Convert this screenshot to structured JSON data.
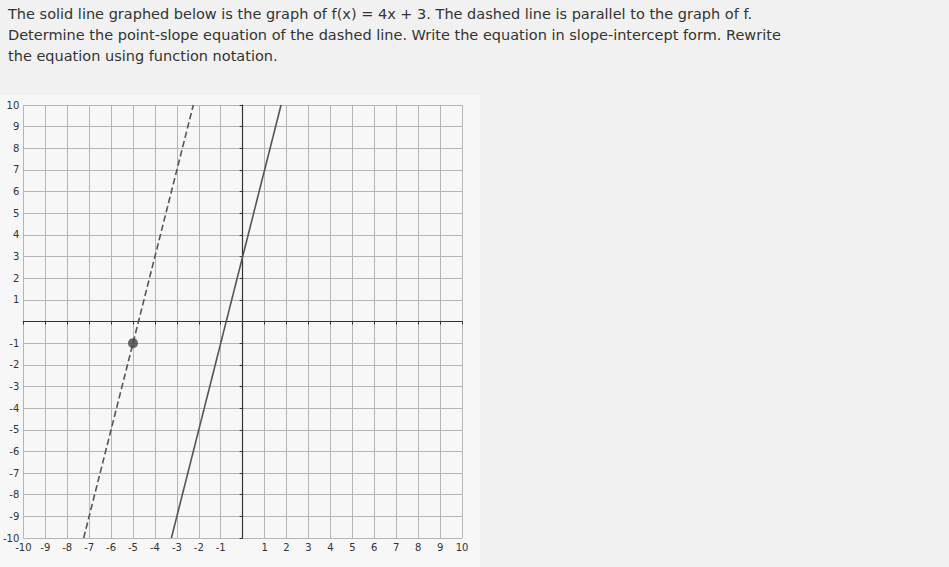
{
  "question": {
    "lines": [
      "The solid line graphed below is the graph of f(x) = 4x + 3. The dashed line is parallel to the graph of f.",
      "Determine the point-slope equation of the dashed line. Write the equation in slope-intercept form. Rewrite",
      "the equation using function notation."
    ]
  },
  "chart_data": {
    "type": "line",
    "xlim": [
      -10,
      10
    ],
    "ylim": [
      -10,
      10
    ],
    "xticks": [
      -10,
      -9,
      -8,
      -7,
      -6,
      -5,
      -4,
      -3,
      -2,
      -1,
      1,
      2,
      3,
      4,
      5,
      6,
      7,
      8,
      9,
      10
    ],
    "yticks": [
      -10,
      -9,
      -8,
      -7,
      -6,
      -5,
      -4,
      -3,
      -2,
      -1,
      1,
      2,
      3,
      4,
      5,
      6,
      7,
      8,
      9,
      10
    ],
    "grid": true,
    "series": [
      {
        "type": "line",
        "line_style": "solid",
        "color": "#555555",
        "x": [
          -3.25,
          1.75
        ],
        "values": [
          -10,
          10
        ]
      },
      {
        "type": "line",
        "line_style": "dashed",
        "color": "#555555",
        "x": [
          -7.25,
          -2.25
        ],
        "values": [
          -10,
          10
        ]
      },
      {
        "type": "scatter",
        "marker": "circle",
        "color": "#444444",
        "x": [
          -5
        ],
        "values": [
          -1
        ]
      }
    ]
  }
}
